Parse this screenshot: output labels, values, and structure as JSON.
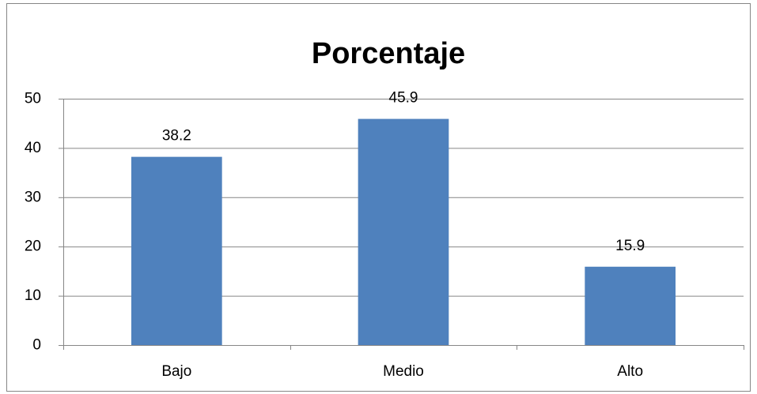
{
  "chart_data": {
    "type": "bar",
    "title": "Porcentaje",
    "categories": [
      "Bajo",
      "Medio",
      "Alto"
    ],
    "values": [
      38.2,
      45.9,
      15.9
    ],
    "color": "#4f81bd",
    "ylim": [
      0,
      50
    ],
    "yticks": [
      0,
      10,
      20,
      30,
      40,
      50
    ],
    "grid": true
  }
}
